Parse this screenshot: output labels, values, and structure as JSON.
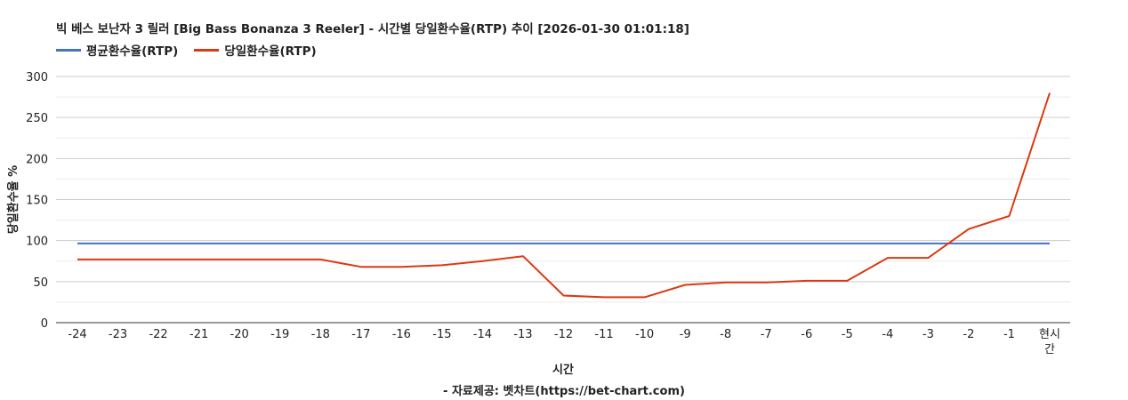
{
  "chart_data": {
    "type": "line",
    "title": "빅 베스 보난자 3 릴러 [Big Bass Bonanza 3 Reeler] - 시간별 당일환수율(RTP) 추이 [2026-01-30 01:01:18]",
    "xlabel": "시간",
    "ylabel": "당일환수율 %",
    "credit": "- 자료제공: 벳차트(https://bet-chart.com)",
    "categories": [
      "-24",
      "-23",
      "-22",
      "-21",
      "-20",
      "-19",
      "-18",
      "-17",
      "-16",
      "-15",
      "-14",
      "-13",
      "-12",
      "-11",
      "-10",
      "-9",
      "-8",
      "-7",
      "-6",
      "-5",
      "-4",
      "-3",
      "-2",
      "-1",
      "현시간"
    ],
    "ylim": [
      0,
      300
    ],
    "yticks": [
      0,
      50,
      100,
      150,
      200,
      250,
      300
    ],
    "grid": true,
    "legend_position": "top-left",
    "series": [
      {
        "name": "평균환수율(RTP)",
        "color": "#4472c4",
        "values": [
          96.5,
          96.5,
          96.5,
          96.5,
          96.5,
          96.5,
          96.5,
          96.5,
          96.5,
          96.5,
          96.5,
          96.5,
          96.5,
          96.5,
          96.5,
          96.5,
          96.5,
          96.5,
          96.5,
          96.5,
          96.5,
          96.5,
          96.5,
          96.5,
          96.5
        ]
      },
      {
        "name": "당일환수율(RTP)",
        "color": "#dc3912",
        "values": [
          77,
          77,
          77,
          77,
          77,
          77,
          77,
          68,
          68,
          70,
          75,
          81,
          33,
          31,
          31,
          46,
          49,
          49,
          51,
          51,
          79,
          79,
          114,
          130,
          280
        ]
      }
    ]
  }
}
